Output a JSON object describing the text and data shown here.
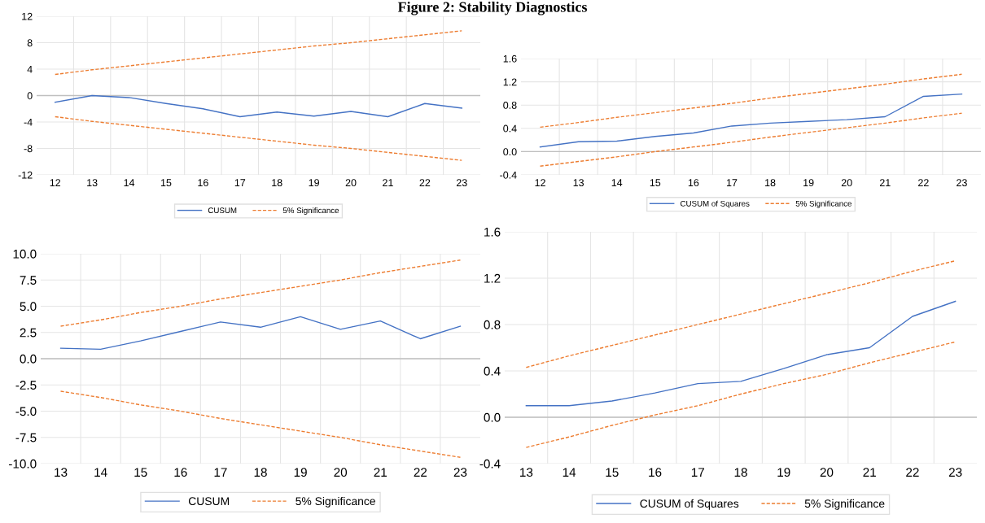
{
  "chart_data": [
    {
      "type": "line",
      "title": "Figure 2: Stability Diagnostics",
      "categories": [
        "12",
        "13",
        "14",
        "15",
        "16",
        "17",
        "18",
        "19",
        "20",
        "21",
        "22",
        "23"
      ],
      "series": [
        {
          "name": "CUSUM",
          "color": "#4472c4",
          "line_style": "solid",
          "values": [
            -1.0,
            0.0,
            -0.3,
            -1.2,
            -2.0,
            -3.2,
            -2.5,
            -3.1,
            -2.4,
            -3.2,
            -1.2,
            -1.9
          ]
        },
        {
          "name": "5% Significance",
          "color": "#ed7d31",
          "line_style": "dashed",
          "values": [
            3.2,
            3.9,
            4.5,
            5.1,
            5.7,
            6.3,
            6.9,
            7.5,
            8.0,
            8.6,
            9.2,
            9.8
          ]
        },
        {
          "color": "#ed7d31",
          "line_style": "dashed",
          "values": [
            -3.2,
            -3.9,
            -4.5,
            -5.1,
            -5.7,
            -6.3,
            -6.9,
            -7.5,
            -8.0,
            -8.6,
            -9.2,
            -9.8
          ]
        }
      ],
      "ylim": [
        -12,
        12
      ],
      "yticks": [
        -12,
        -8,
        -4,
        0,
        4,
        8,
        12
      ],
      "grid": true,
      "legend": "bottom",
      "ref_lines": [
        {
          "axis": "y",
          "value": 0,
          "color": "#bfbfbf"
        }
      ]
    },
    {
      "type": "line",
      "categories": [
        "12",
        "13",
        "14",
        "15",
        "16",
        "17",
        "18",
        "19",
        "20",
        "21",
        "22",
        "23"
      ],
      "series": [
        {
          "name": "CUSUM of Squares",
          "color": "#4472c4",
          "line_style": "solid",
          "values": [
            0.08,
            0.17,
            0.18,
            0.26,
            0.32,
            0.44,
            0.49,
            0.52,
            0.55,
            0.6,
            0.95,
            0.99
          ]
        },
        {
          "name": "5% Significance",
          "color": "#ed7d31",
          "line_style": "dashed",
          "values": [
            0.42,
            0.5,
            0.59,
            0.67,
            0.75,
            0.83,
            0.92,
            1.0,
            1.08,
            1.16,
            1.25,
            1.33
          ]
        },
        {
          "color": "#ed7d31",
          "line_style": "dashed",
          "values": [
            -0.25,
            -0.17,
            -0.09,
            0.0,
            0.08,
            0.16,
            0.25,
            0.33,
            0.41,
            0.49,
            0.58,
            0.66
          ]
        }
      ],
      "ylim": [
        -0.4,
        1.6
      ],
      "yticks": [
        -0.4,
        {
          "value": 0,
          "label": "0.0"
        },
        0.4,
        0.8,
        1.2,
        1.6
      ],
      "grid": true,
      "legend": "bottom",
      "ref_lines": [
        {
          "axis": "y",
          "value": 0,
          "color": "#bfbfbf"
        }
      ]
    },
    {
      "type": "line",
      "categories": [
        "13",
        "14",
        "15",
        "16",
        "17",
        "18",
        "19",
        "20",
        "21",
        "22",
        "23"
      ],
      "series": [
        {
          "name": "CUSUM",
          "color": "#4472c4",
          "line_style": "solid",
          "values": [
            1.0,
            0.9,
            1.7,
            2.6,
            3.5,
            3.0,
            4.0,
            2.8,
            3.6,
            1.9,
            3.1
          ]
        },
        {
          "name": "5% Significance",
          "color": "#ed7d31",
          "line_style": "dashed",
          "values": [
            3.1,
            3.7,
            4.4,
            5.0,
            5.7,
            6.3,
            6.9,
            7.5,
            8.2,
            8.8,
            9.4
          ]
        },
        {
          "color": "#ed7d31",
          "line_style": "dashed",
          "values": [
            -3.1,
            -3.7,
            -4.4,
            -5.0,
            -5.7,
            -6.3,
            -6.9,
            -7.5,
            -8.2,
            -8.8,
            -9.4
          ]
        }
      ],
      "ylim": [
        -10,
        10
      ],
      "yticks": [
        {
          "value": -10,
          "label": "-10.0"
        },
        -7.5,
        {
          "value": -5,
          "label": "-5.0"
        },
        -2.5,
        {
          "value": 0,
          "label": "0.0"
        },
        2.5,
        {
          "value": 5,
          "label": "5.0"
        },
        7.5,
        {
          "value": 10,
          "label": "10.0"
        }
      ],
      "grid": true,
      "legend": "bottom",
      "ref_lines": [
        {
          "axis": "y",
          "value": 0,
          "color": "#bfbfbf"
        }
      ]
    },
    {
      "type": "line",
      "categories": [
        "13",
        "14",
        "15",
        "16",
        "17",
        "18",
        "19",
        "20",
        "21",
        "22",
        "23"
      ],
      "series": [
        {
          "name": "CUSUM of Squares",
          "color": "#4472c4",
          "line_style": "solid",
          "values": [
            0.1,
            0.1,
            0.14,
            0.21,
            0.29,
            0.31,
            0.42,
            0.54,
            0.6,
            0.87,
            1.0
          ]
        },
        {
          "name": "5% Significance",
          "color": "#ed7d31",
          "line_style": "dashed",
          "values": [
            0.43,
            0.53,
            0.62,
            0.71,
            0.8,
            0.89,
            0.98,
            1.07,
            1.16,
            1.26,
            1.35
          ]
        },
        {
          "color": "#ed7d31",
          "line_style": "dashed",
          "values": [
            -0.26,
            -0.17,
            -0.07,
            0.02,
            0.1,
            0.2,
            0.29,
            0.37,
            0.47,
            0.56,
            0.65
          ]
        }
      ],
      "ylim": [
        -0.4,
        1.6
      ],
      "yticks": [
        -0.4,
        {
          "value": 0,
          "label": "0.0"
        },
        0.4,
        0.8,
        1.2,
        1.6
      ],
      "grid": true,
      "legend": "bottom",
      "ref_lines": [
        {
          "axis": "y",
          "value": 0,
          "color": "#bfbfbf"
        }
      ]
    }
  ]
}
